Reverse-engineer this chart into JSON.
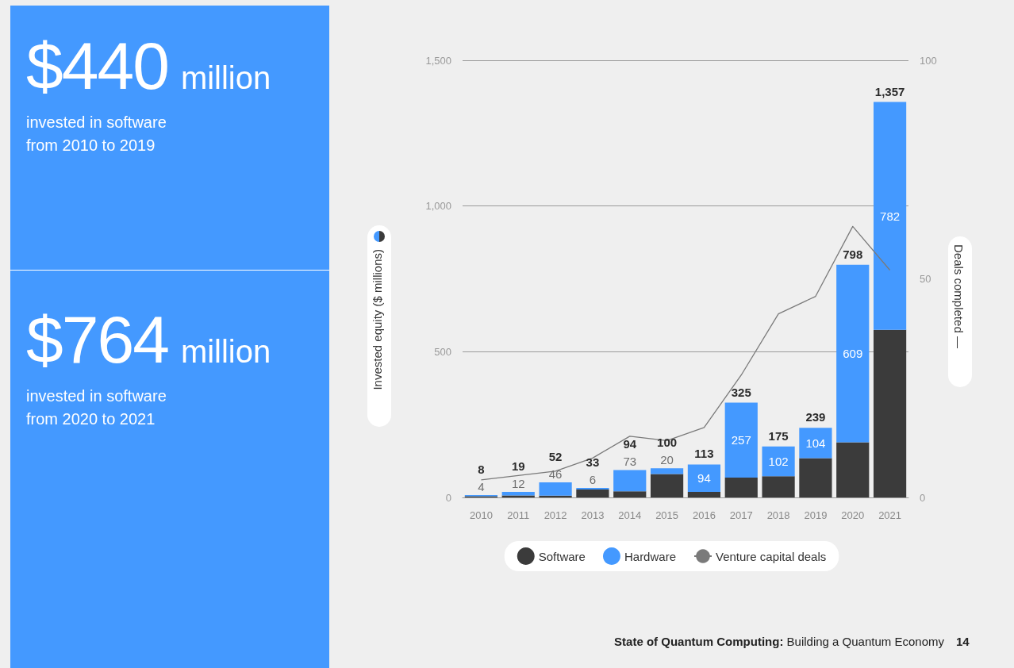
{
  "chart_data": {
    "type": "bar",
    "stacked": true,
    "categories": [
      "2010",
      "2011",
      "2012",
      "2013",
      "2014",
      "2015",
      "2016",
      "2017",
      "2018",
      "2019",
      "2020",
      "2021"
    ],
    "series": [
      {
        "name": "Software",
        "color": "#3b3b3b",
        "values": [
          4,
          7,
          6,
          27,
          21,
          80,
          19,
          68,
          73,
          135,
          189,
          575
        ]
      },
      {
        "name": "Hardware",
        "color": "#4499ff",
        "values": [
          4,
          12,
          46,
          6,
          73,
          20,
          94,
          257,
          102,
          104,
          609,
          782
        ],
        "value_labels": [
          "4",
          "12",
          "46",
          "6",
          "73",
          "20",
          "94",
          "257",
          "102",
          "104",
          "609",
          "782"
        ]
      },
      {
        "name": "Venture capital deals",
        "type": "line",
        "axis": "y2",
        "color": "#7a7a7a",
        "values": [
          4,
          5,
          6,
          9,
          14,
          13,
          16,
          28,
          42,
          46,
          62,
          52
        ]
      }
    ],
    "totals": [
      "8",
      "19",
      "52",
      "33",
      "94",
      "100",
      "113",
      "325",
      "175",
      "239",
      "798",
      "1,357"
    ],
    "ylabel": "Invested equity ($ millions)",
    "y2label": "Deals completed —",
    "ylim": [
      0,
      1500
    ],
    "yticks": [
      0,
      500,
      {
        "value": 1000,
        "label": "1,000"
      },
      {
        "value": 1500,
        "label": "1,500"
      }
    ],
    "y2lim": [
      0,
      100
    ],
    "y2ticks": [
      0,
      50,
      100
    ],
    "grid": "y",
    "legend": "bottom",
    "marker": "none",
    "annotations": [
      "$440 million",
      "invested in software from 2010 to 2019",
      "$764 million",
      "invested in software from 2020 to 2021",
      "State of Quantum Computing: Building a Quantum Economy",
      "14"
    ]
  }
}
